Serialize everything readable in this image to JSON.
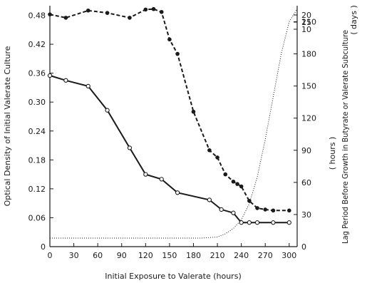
{
  "chart_data": {
    "type": "line",
    "title": "",
    "xlabel": "Initial Exposure to Valerate (hours)",
    "ylabel_left": "Optical Density of Initial Valerate Culture",
    "ylabel_right": "Lag Period Before Growth in Butyrate or Valerate Subculture",
    "right_units_hours": "( hours )",
    "right_units_days": "( days )",
    "xlim": [
      0,
      310
    ],
    "ylim_left": [
      0,
      0.5
    ],
    "ylim_right_hours": [
      0,
      225
    ],
    "x_ticks": [
      "0",
      "30",
      "60",
      "90",
      "120",
      "150",
      "180",
      "210",
      "240",
      "270",
      "300"
    ],
    "x_tick_values": [
      0,
      30,
      60,
      90,
      120,
      150,
      180,
      210,
      240,
      270,
      300
    ],
    "y_ticks_left": [
      "0",
      "0.06",
      "0.12",
      "0.18",
      "0.24",
      "0.30",
      "0.36",
      "0.42",
      "0.48"
    ],
    "y_tick_values_left": [
      0,
      0.06,
      0.12,
      0.18,
      0.24,
      0.3,
      0.36,
      0.42,
      0.48
    ],
    "y_ticks_right_hours": [
      "0",
      "30",
      "60",
      "90",
      "120",
      "150",
      "180",
      "210"
    ],
    "y_tick_values_right_hours": [
      0,
      30,
      60,
      90,
      120,
      150,
      180,
      210
    ],
    "y_ticks_right_days": [
      "10",
      "15",
      "20"
    ],
    "y_tick_values_right_days": [
      10,
      15,
      20
    ],
    "series": [
      {
        "style": "solid",
        "marker": "open-circle",
        "axis": "left",
        "x": [
          0,
          20,
          48,
          72,
          100,
          120,
          140,
          160,
          200,
          215,
          230,
          240,
          250,
          260,
          280,
          300
        ],
        "y": [
          0.355,
          0.345,
          0.333,
          0.283,
          0.205,
          0.15,
          0.14,
          0.112,
          0.097,
          0.077,
          0.07,
          0.05,
          0.05,
          0.05,
          0.05,
          0.05
        ]
      },
      {
        "style": "dashed",
        "marker": "filled-circle",
        "axis": "left",
        "x": [
          0,
          20,
          48,
          72,
          100,
          120,
          130,
          140,
          150,
          160,
          180,
          200,
          210,
          220,
          230,
          235,
          240,
          250,
          260,
          270,
          280,
          300
        ],
        "y": [
          0.482,
          0.475,
          0.49,
          0.485,
          0.475,
          0.492,
          0.493,
          0.487,
          0.43,
          0.4,
          0.28,
          0.2,
          0.185,
          0.15,
          0.135,
          0.13,
          0.125,
          0.095,
          0.08,
          0.077,
          0.075,
          0.075
        ]
      },
      {
        "style": "dotted",
        "marker": "none",
        "axis": "right",
        "x": [
          0,
          150,
          190,
          210,
          220,
          230,
          240,
          250,
          260,
          270,
          280,
          290,
          300,
          310
        ],
        "y": [
          8,
          8,
          8,
          9,
          12,
          17,
          25,
          40,
          65,
          100,
          140,
          180,
          210,
          222
        ]
      }
    ]
  }
}
